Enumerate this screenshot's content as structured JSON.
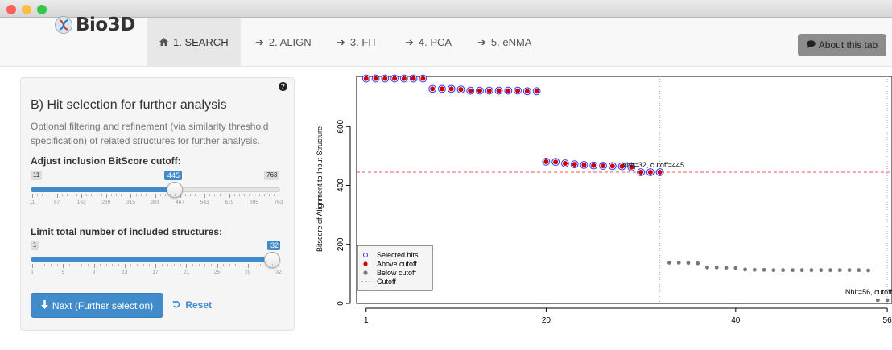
{
  "window": {
    "buttons": {
      "close": "#fc605c",
      "minimize": "#fdbc40",
      "zoom": "#34c84a"
    }
  },
  "navbar": {
    "brand": "Bio3D",
    "tabs": [
      {
        "label": "1. SEARCH",
        "icon": "home-icon",
        "active": true
      },
      {
        "label": "2. ALIGN",
        "icon": "arrow-right-icon"
      },
      {
        "label": "3. FIT",
        "icon": "arrow-right-icon"
      },
      {
        "label": "4. PCA",
        "icon": "arrow-right-icon"
      },
      {
        "label": "5. eNMA",
        "icon": "arrow-right-icon"
      }
    ],
    "about_label": "About this tab"
  },
  "panel": {
    "title": "B) Hit selection for further analysis",
    "description": "Optional filtering and refinement (via similarity threshold specification) of related structures for further analysis.",
    "cutoff_slider": {
      "label": "Adjust inclusion BitScore cutoff:",
      "min": "11",
      "max": "763",
      "value": "445",
      "ticks": [
        "11",
        "87",
        "163",
        "239",
        "315",
        "391",
        "467",
        "543",
        "619",
        "695",
        "763"
      ]
    },
    "limit_slider": {
      "label": "Limit total number of included structures:",
      "min": "1",
      "max": "32",
      "value": "32",
      "ticks": [
        "1",
        "5",
        "9",
        "13",
        "17",
        "21",
        "25",
        "29",
        "32"
      ]
    },
    "next_label": "Next (Further selection)",
    "reset_label": "Reset"
  },
  "colors": {
    "accent": "#428bca",
    "selected": "#3333ff",
    "above": "#cc0000",
    "below": "#777777",
    "cutoff": "#ff5555"
  },
  "chart_data": {
    "type": "scatter",
    "ylabel": "Bitscore of Alignment to Input Structure",
    "xlabel": "",
    "xlim": [
      0,
      56.5
    ],
    "ylim": [
      0,
      770
    ],
    "x_ticks": [
      1,
      20,
      40,
      56
    ],
    "y_ticks": [
      0,
      200,
      400,
      600
    ],
    "cutoff": 445,
    "vlines": [
      32,
      56
    ],
    "annotations": [
      "Nhit=32, cutoff=445",
      "Nhit=56, cutoff"
    ],
    "legend": [
      "Selected hits",
      "Above cutoff",
      "Below cutoff",
      "Cutoff"
    ],
    "legend_position": "bottom-left",
    "series": [
      {
        "name": "Selected hits",
        "x": [
          1,
          2,
          3,
          4,
          5,
          6,
          7,
          8,
          9,
          10,
          11,
          12,
          13,
          14,
          15,
          16,
          17,
          18,
          19,
          20,
          21,
          22,
          23,
          24,
          25,
          26,
          27,
          28,
          29,
          30,
          31,
          32
        ],
        "y": [
          763,
          763,
          763,
          763,
          763,
          763,
          763,
          728,
          728,
          728,
          726,
          722,
          722,
          722,
          722,
          722,
          722,
          720,
          720,
          481,
          480,
          475,
          472,
          470,
          468,
          467,
          466,
          465,
          462,
          445,
          445,
          445
        ]
      },
      {
        "name": "Above cutoff",
        "x": [
          1,
          2,
          3,
          4,
          5,
          6,
          7,
          8,
          9,
          10,
          11,
          12,
          13,
          14,
          15,
          16,
          17,
          18,
          19,
          20,
          21,
          22,
          23,
          24,
          25,
          26,
          27,
          28,
          29,
          30,
          31,
          32
        ],
        "y": [
          763,
          763,
          763,
          763,
          763,
          763,
          763,
          728,
          728,
          728,
          726,
          722,
          722,
          722,
          722,
          722,
          722,
          720,
          720,
          481,
          480,
          475,
          472,
          470,
          468,
          467,
          466,
          465,
          462,
          445,
          445,
          445
        ]
      },
      {
        "name": "Below cutoff",
        "x": [
          33,
          34,
          35,
          36,
          37,
          38,
          39,
          40,
          41,
          42,
          43,
          44,
          45,
          46,
          47,
          48,
          49,
          50,
          51,
          52,
          53,
          54,
          55,
          56
        ],
        "y": [
          138,
          138,
          137,
          136,
          122,
          122,
          121,
          120,
          115,
          114,
          114,
          113,
          113,
          113,
          113,
          113,
          113,
          113,
          113,
          113,
          113,
          112,
          11,
          11
        ]
      }
    ]
  }
}
